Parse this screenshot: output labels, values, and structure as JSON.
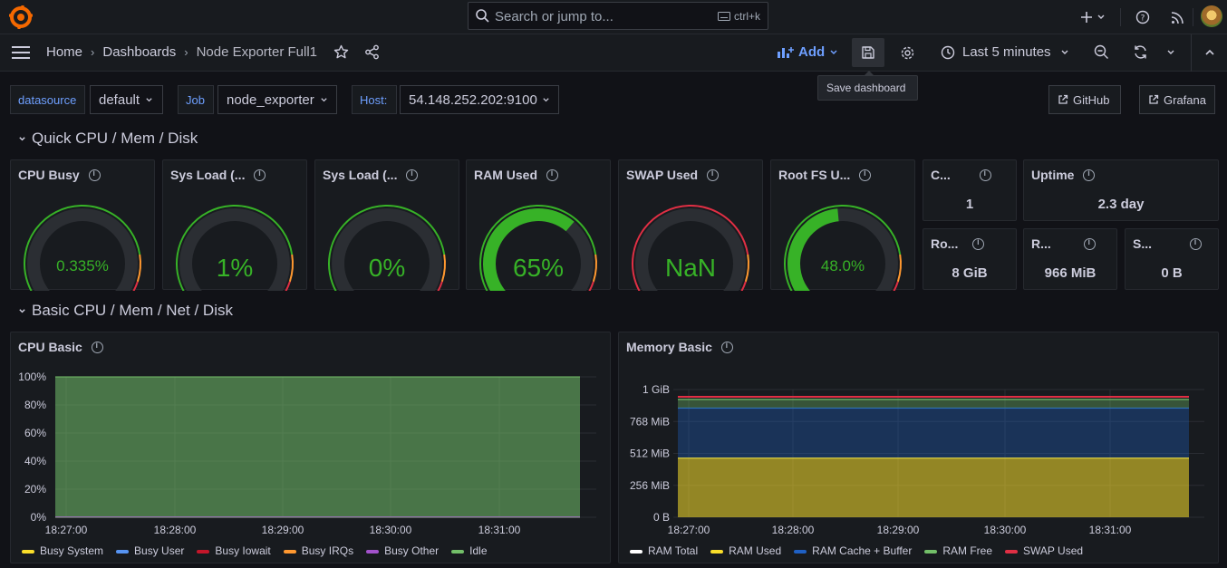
{
  "topbar": {
    "search_placeholder": "Search or jump to...",
    "search_shortcut": "ctrl+k"
  },
  "navbar": {
    "breadcrumbs": [
      "Home",
      "Dashboards",
      "Node Exporter Full1"
    ],
    "add_label": "Add",
    "save_tooltip": "Save dashboard",
    "time_range": "Last 5 minutes"
  },
  "variables": {
    "datasource_label": "datasource",
    "datasource_value": "default",
    "job_label": "Job",
    "job_value": "node_exporter",
    "host_label": "Host:",
    "host_value": "54.148.252.202:9100",
    "github_link": "GitHub",
    "grafana_link": "Grafana"
  },
  "rows": {
    "quick": "Quick CPU / Mem / Disk",
    "basic": "Basic CPU / Mem / Net / Disk"
  },
  "gauges": [
    {
      "title": "CPU Busy",
      "value": "0.335%",
      "fill": 0.00335
    },
    {
      "title": "Sys Load (...",
      "value": "1%",
      "fill": 0.01
    },
    {
      "title": "Sys Load (...",
      "value": "0%",
      "fill": 0.0
    },
    {
      "title": "RAM Used",
      "value": "65%",
      "fill": 0.65
    },
    {
      "title": "SWAP Used",
      "value": "NaN",
      "fill": 0.0
    },
    {
      "title": "Root FS U...",
      "value": "48.0%",
      "fill": 0.48
    }
  ],
  "stats": [
    {
      "title": "C...",
      "value": "1"
    },
    {
      "title": "Uptime",
      "value": "2.3 day"
    },
    {
      "title": "Ro...",
      "value": "8 GiB"
    },
    {
      "title": "R...",
      "value": "966 MiB"
    },
    {
      "title": "S...",
      "value": "0 B"
    }
  ],
  "colors": {
    "green": "#37b227",
    "red": "#e02f44",
    "orange": "#ff9830",
    "track": "#2b2e33",
    "blue": "#6e9fff"
  },
  "chart_data": [
    {
      "type": "area",
      "title": "CPU Basic",
      "x": [
        "18:27:00",
        "18:28:00",
        "18:29:00",
        "18:30:00",
        "18:31:00"
      ],
      "yticks": [
        "0%",
        "20%",
        "40%",
        "60%",
        "80%",
        "100%"
      ],
      "ylim": [
        0,
        100
      ],
      "series": [
        {
          "name": "Busy System",
          "color": "#fade2a",
          "value": 0.2
        },
        {
          "name": "Busy User",
          "color": "#5794f2",
          "value": 0.1
        },
        {
          "name": "Busy Iowait",
          "color": "#c4162a",
          "value": 0
        },
        {
          "name": "Busy IRQs",
          "color": "#ff9830",
          "value": 0
        },
        {
          "name": "Busy Other",
          "color": "#a352cc",
          "value": 0
        },
        {
          "name": "Idle",
          "color": "#73bf69",
          "value": 99.7
        }
      ]
    },
    {
      "type": "area",
      "title": "Memory Basic",
      "x": [
        "18:27:00",
        "18:28:00",
        "18:29:00",
        "18:30:00",
        "18:31:00"
      ],
      "yticks": [
        "0 B",
        "256 MiB",
        "512 MiB",
        "768 MiB",
        "1 GiB"
      ],
      "ylim_mib": [
        0,
        1024
      ],
      "series": [
        {
          "name": "RAM Total",
          "color": "#ffffff",
          "value_mib": 966
        },
        {
          "name": "RAM Used",
          "color": "#fade2a",
          "value_mib": 475
        },
        {
          "name": "RAM Cache + Buffer",
          "color": "#1f60c4",
          "value_mib": 400
        },
        {
          "name": "RAM Free",
          "color": "#73bf69",
          "value_mib": 70
        },
        {
          "name": "SWAP Used",
          "color": "#e02f44",
          "value_mib": 0
        }
      ]
    }
  ]
}
